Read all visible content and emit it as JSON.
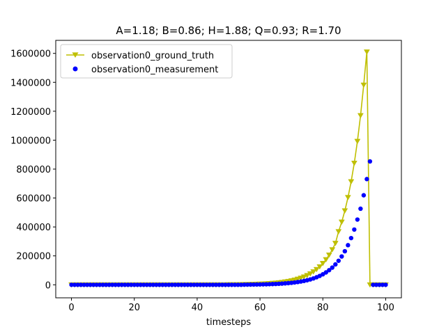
{
  "chart_data": {
    "type": "line",
    "title": "A=1.18; B=0.86; H=1.88; Q=0.93; R=1.70",
    "xlabel": "timesteps",
    "ylabel": "",
    "xlim": [
      -5,
      105
    ],
    "ylim": [
      -90000,
      1690000
    ],
    "xticks": [
      0,
      20,
      40,
      60,
      80,
      100
    ],
    "yticks": [
      0,
      200000,
      400000,
      600000,
      800000,
      1000000,
      1200000,
      1400000,
      1600000
    ],
    "grid": false,
    "legend_position": "top-left",
    "series": [
      {
        "name": "observation0_ground_truth",
        "kind": "line",
        "marker": "triangle-down",
        "color": "#bfbf00",
        "points": [
          [
            0,
            0
          ],
          [
            1,
            0
          ],
          [
            2,
            0
          ],
          [
            3,
            0
          ],
          [
            4,
            0
          ],
          [
            5,
            0
          ],
          [
            6,
            0
          ],
          [
            7,
            0
          ],
          [
            8,
            0
          ],
          [
            9,
            0
          ],
          [
            10,
            0
          ],
          [
            11,
            0
          ],
          [
            12,
            0
          ],
          [
            13,
            0
          ],
          [
            14,
            0
          ],
          [
            15,
            0
          ],
          [
            16,
            0
          ],
          [
            17,
            0
          ],
          [
            18,
            0
          ],
          [
            19,
            0
          ],
          [
            20,
            0
          ],
          [
            21,
            0
          ],
          [
            22,
            0
          ],
          [
            23,
            0
          ],
          [
            24,
            0
          ],
          [
            25,
            0
          ],
          [
            26,
            0
          ],
          [
            27,
            0
          ],
          [
            28,
            0
          ],
          [
            29,
            0
          ],
          [
            30,
            0
          ],
          [
            31,
            0
          ],
          [
            32,
            0
          ],
          [
            33,
            0
          ],
          [
            34,
            0
          ],
          [
            35,
            0
          ],
          [
            36,
            0
          ],
          [
            37,
            0
          ],
          [
            38,
            0
          ],
          [
            39,
            0
          ],
          [
            40,
            0
          ],
          [
            41,
            0
          ],
          [
            42,
            0
          ],
          [
            43,
            0
          ],
          [
            44,
            0
          ],
          [
            45,
            0
          ],
          [
            46,
            0
          ],
          [
            47,
            0
          ],
          [
            48,
            0
          ],
          [
            49,
            0
          ],
          [
            50,
            1000
          ],
          [
            51,
            1200
          ],
          [
            52,
            1400
          ],
          [
            53,
            1700
          ],
          [
            54,
            2000
          ],
          [
            55,
            2400
          ],
          [
            56,
            2800
          ],
          [
            57,
            3300
          ],
          [
            58,
            3900
          ],
          [
            59,
            4600
          ],
          [
            60,
            5400
          ],
          [
            61,
            6400
          ],
          [
            62,
            7500
          ],
          [
            63,
            8900
          ],
          [
            64,
            10500
          ],
          [
            65,
            12400
          ],
          [
            66,
            14600
          ],
          [
            67,
            17200
          ],
          [
            68,
            20300
          ],
          [
            69,
            24000
          ],
          [
            70,
            28300
          ],
          [
            71,
            33300
          ],
          [
            72,
            39300
          ],
          [
            73,
            46400
          ],
          [
            74,
            54700
          ],
          [
            75,
            64600
          ],
          [
            76,
            76200
          ],
          [
            77,
            89900
          ],
          [
            78,
            106000
          ],
          [
            79,
            125000
          ],
          [
            80,
            148000
          ],
          [
            81,
            174000
          ],
          [
            82,
            206000
          ],
          [
            83,
            243000
          ],
          [
            84,
            287000
          ],
          [
            85,
            368000
          ],
          [
            86,
            434000
          ],
          [
            87,
            512000
          ],
          [
            88,
            604000
          ],
          [
            89,
            713000
          ],
          [
            90,
            841000
          ],
          [
            91,
            992000
          ],
          [
            92,
            1170000
          ],
          [
            93,
            1381000
          ],
          [
            94,
            1610000
          ],
          [
            95,
            0
          ],
          [
            96,
            0
          ],
          [
            97,
            0
          ],
          [
            98,
            0
          ],
          [
            99,
            0
          ],
          [
            100,
            0
          ]
        ]
      },
      {
        "name": "observation0_measurement",
        "kind": "scatter",
        "marker": "circle",
        "color": "#0000ff",
        "points": [
          [
            0,
            0
          ],
          [
            1,
            0
          ],
          [
            2,
            0
          ],
          [
            3,
            0
          ],
          [
            4,
            0
          ],
          [
            5,
            0
          ],
          [
            6,
            0
          ],
          [
            7,
            0
          ],
          [
            8,
            0
          ],
          [
            9,
            0
          ],
          [
            10,
            0
          ],
          [
            11,
            0
          ],
          [
            12,
            0
          ],
          [
            13,
            0
          ],
          [
            14,
            0
          ],
          [
            15,
            0
          ],
          [
            16,
            0
          ],
          [
            17,
            0
          ],
          [
            18,
            0
          ],
          [
            19,
            0
          ],
          [
            20,
            0
          ],
          [
            21,
            0
          ],
          [
            22,
            0
          ],
          [
            23,
            0
          ],
          [
            24,
            0
          ],
          [
            25,
            0
          ],
          [
            26,
            0
          ],
          [
            27,
            0
          ],
          [
            28,
            0
          ],
          [
            29,
            0
          ],
          [
            30,
            0
          ],
          [
            31,
            0
          ],
          [
            32,
            0
          ],
          [
            33,
            0
          ],
          [
            34,
            0
          ],
          [
            35,
            0
          ],
          [
            36,
            0
          ],
          [
            37,
            0
          ],
          [
            38,
            0
          ],
          [
            39,
            0
          ],
          [
            40,
            0
          ],
          [
            41,
            0
          ],
          [
            42,
            0
          ],
          [
            43,
            0
          ],
          [
            44,
            0
          ],
          [
            45,
            0
          ],
          [
            46,
            0
          ],
          [
            47,
            0
          ],
          [
            48,
            0
          ],
          [
            49,
            0
          ],
          [
            50,
            0
          ],
          [
            51,
            0
          ],
          [
            52,
            0
          ],
          [
            53,
            0
          ],
          [
            54,
            0
          ],
          [
            55,
            1000
          ],
          [
            56,
            1200
          ],
          [
            57,
            1500
          ],
          [
            58,
            1800
          ],
          [
            59,
            2100
          ],
          [
            60,
            2500
          ],
          [
            61,
            3000
          ],
          [
            62,
            3500
          ],
          [
            63,
            4200
          ],
          [
            64,
            5000
          ],
          [
            65,
            5900
          ],
          [
            66,
            7000
          ],
          [
            67,
            8300
          ],
          [
            68,
            9800
          ],
          [
            69,
            11600
          ],
          [
            70,
            13700
          ],
          [
            71,
            16200
          ],
          [
            72,
            19100
          ],
          [
            73,
            22600
          ],
          [
            74,
            26700
          ],
          [
            75,
            31500
          ],
          [
            76,
            37200
          ],
          [
            77,
            44000
          ],
          [
            78,
            52000
          ],
          [
            79,
            61400
          ],
          [
            80,
            72500
          ],
          [
            81,
            85600
          ],
          [
            82,
            101000
          ],
          [
            83,
            119000
          ],
          [
            84,
            141000
          ],
          [
            85,
            166000
          ],
          [
            86,
            196000
          ],
          [
            87,
            232000
          ],
          [
            88,
            274000
          ],
          [
            89,
            323000
          ],
          [
            90,
            382000
          ],
          [
            91,
            451000
          ],
          [
            92,
            526000
          ],
          [
            93,
            619000
          ],
          [
            94,
            731000
          ],
          [
            95,
            853000
          ],
          [
            96,
            0
          ],
          [
            97,
            0
          ],
          [
            98,
            0
          ],
          [
            99,
            0
          ],
          [
            100,
            0
          ]
        ]
      }
    ]
  }
}
